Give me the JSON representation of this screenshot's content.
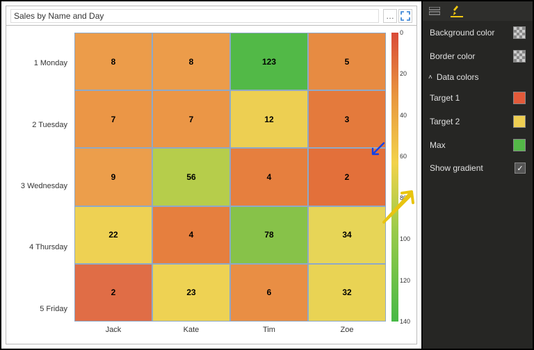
{
  "visual": {
    "title": "Sales by Name and Day",
    "rows": [
      "1 Monday",
      "2 Tuesday",
      "3 Wednesday",
      "4 Thursday",
      "5 Friday"
    ],
    "columns": [
      "Jack",
      "Kate",
      "Tim",
      "Zoe"
    ],
    "values": [
      [
        8,
        8,
        123,
        5
      ],
      [
        7,
        7,
        12,
        3
      ],
      [
        9,
        56,
        4,
        2
      ],
      [
        22,
        4,
        78,
        34
      ],
      [
        2,
        23,
        6,
        32
      ]
    ],
    "cell_colors": [
      [
        "#ec9c4a",
        "#ec9c4a",
        "#52b947",
        "#e78b42"
      ],
      [
        "#eb9646",
        "#eb9646",
        "#edcf52",
        "#e47a3c"
      ],
      [
        "#ec9e4b",
        "#b6cd4b",
        "#e67f3e",
        "#e3703a"
      ],
      [
        "#eed153",
        "#e67f3e",
        "#87c249",
        "#e7d557"
      ],
      [
        "#e06d46",
        "#eed253",
        "#e98e44",
        "#e9d354"
      ]
    ],
    "legend": {
      "ticks": [
        0,
        20,
        40,
        60,
        80,
        100,
        120,
        140
      ],
      "gradient_css": "linear-gradient(to bottom, #d94a38 0%, #e8963f 22%, #f2d24a 45%, #9bcb4a 68%, #48b947 100%)"
    }
  },
  "format": {
    "background_label": "Background color",
    "border_label": "Border color",
    "section_label": "Data colors",
    "target1_label": "Target 1",
    "target1_color": "#e35a3a",
    "target2_label": "Target 2",
    "target2_color": "#eece52",
    "max_label": "Max",
    "max_color": "#54b948",
    "show_gradient_label": "Show gradient",
    "show_gradient_checked": true
  }
}
